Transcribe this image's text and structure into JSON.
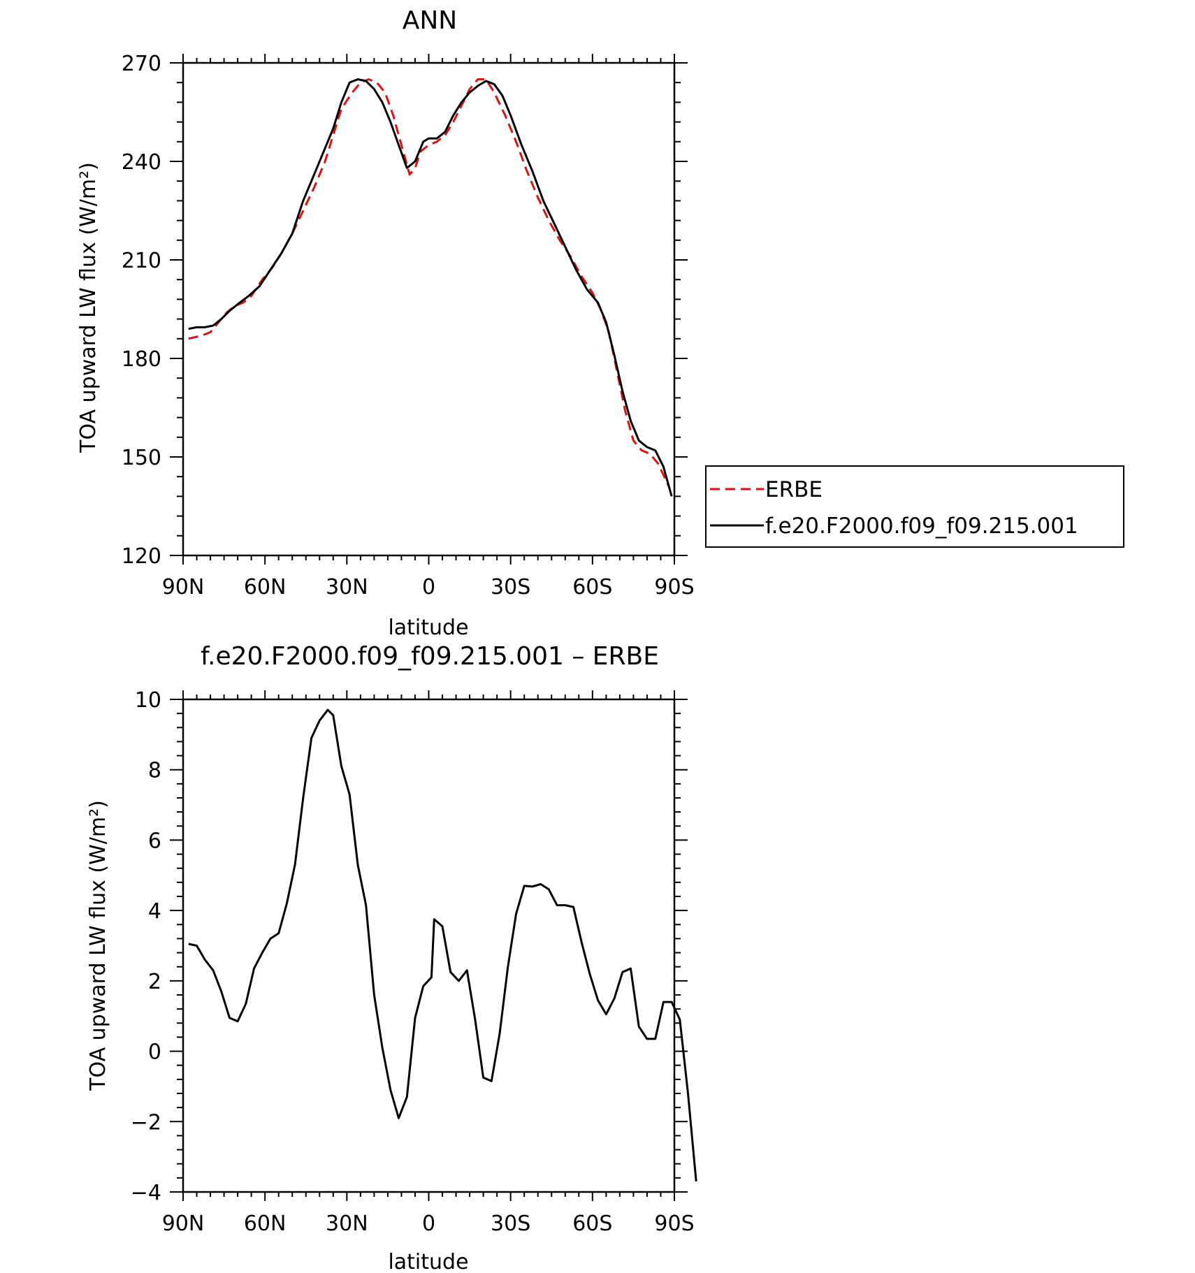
{
  "chart_data": [
    {
      "type": "line",
      "title": "ANN",
      "xlabel": "latitude",
      "ylabel": "TOA upward LW flux (W/m²)",
      "ylim": [
        120,
        270
      ],
      "xlim": [
        90,
        -90
      ],
      "x_ticks": [
        90,
        60,
        30,
        0,
        -30,
        -60,
        -90
      ],
      "x_tick_labels": [
        "90N",
        "60N",
        "30N",
        "0",
        "30S",
        "60S",
        "90S"
      ],
      "y_ticks": [
        120,
        150,
        180,
        210,
        240,
        270
      ],
      "y_tick_labels": [
        "120",
        "150",
        "180",
        "210",
        "240",
        "270"
      ],
      "grid": false,
      "legend_position": "right-middle",
      "series": [
        {
          "name": "ERBE",
          "color": "#e01010",
          "dash": "dashed",
          "points": [
            [
              88,
              186
            ],
            [
              83,
              187
            ],
            [
              80,
              188
            ],
            [
              77,
              191
            ],
            [
              74,
              194
            ],
            [
              71,
              196
            ],
            [
              68,
              197
            ],
            [
              65,
              199
            ],
            [
              61,
              204
            ],
            [
              57,
              208
            ],
            [
              54,
              212
            ],
            [
              50,
              218
            ],
            [
              46,
              225
            ],
            [
              42,
              232
            ],
            [
              38,
              240
            ],
            [
              35,
              248
            ],
            [
              32,
              256
            ],
            [
              28,
              261
            ],
            [
              25,
              264
            ],
            [
              22,
              265
            ],
            [
              19,
              264
            ],
            [
              16,
              261
            ],
            [
              13,
              254
            ],
            [
              10,
              245
            ],
            [
              7,
              236
            ],
            [
              5,
              238
            ],
            [
              3,
              243
            ],
            [
              0,
              245
            ],
            [
              -3,
              246
            ],
            [
              -6,
              248
            ],
            [
              -9,
              252
            ],
            [
              -12,
              257
            ],
            [
              -15,
              262
            ],
            [
              -18,
              265
            ],
            [
              -21,
              265
            ],
            [
              -24,
              261
            ],
            [
              -28,
              254
            ],
            [
              -32,
              246
            ],
            [
              -36,
              237
            ],
            [
              -40,
              229
            ],
            [
              -44,
              222
            ],
            [
              -48,
              216
            ],
            [
              -52,
              211
            ],
            [
              -56,
              205
            ],
            [
              -60,
              200
            ],
            [
              -63,
              195
            ],
            [
              -66,
              188
            ],
            [
              -69,
              176
            ],
            [
              -72,
              164
            ],
            [
              -75,
              155
            ],
            [
              -78,
              152
            ],
            [
              -81,
              151
            ],
            [
              -84,
              148
            ],
            [
              -88,
              141
            ]
          ]
        },
        {
          "name": "f.e20.F2000.f09_f09.215.001",
          "color": "#000000",
          "dash": "solid",
          "points": [
            [
              88,
              189
            ],
            [
              85,
              189.5
            ],
            [
              82,
              189.5
            ],
            [
              79,
              190
            ],
            [
              76,
              192
            ],
            [
              73,
              194.5
            ],
            [
              70,
              196.5
            ],
            [
              66,
              199
            ],
            [
              62,
              202
            ],
            [
              58,
              207
            ],
            [
              54,
              212
            ],
            [
              50,
              218
            ],
            [
              46,
              228
            ],
            [
              42,
              236
            ],
            [
              38,
              244
            ],
            [
              35,
              250
            ],
            [
              32,
              258
            ],
            [
              29,
              264
            ],
            [
              26,
              265
            ],
            [
              23,
              264.5
            ],
            [
              20,
              262
            ],
            [
              17,
              258
            ],
            [
              14,
              252
            ],
            [
              11,
              245
            ],
            [
              8,
              238
            ],
            [
              5,
              240
            ],
            [
              2,
              246
            ],
            [
              0,
              247
            ],
            [
              -3,
              247
            ],
            [
              -6,
              249
            ],
            [
              -9,
              254
            ],
            [
              -12,
              258
            ],
            [
              -15,
              261
            ],
            [
              -18,
              263
            ],
            [
              -21,
              264.5
            ],
            [
              -24,
              263.5
            ],
            [
              -27,
              260
            ],
            [
              -30,
              254
            ],
            [
              -34,
              245
            ],
            [
              -38,
              237
            ],
            [
              -42,
              228
            ],
            [
              -46,
              221
            ],
            [
              -50,
              214
            ],
            [
              -54,
              207
            ],
            [
              -58,
              201
            ],
            [
              -62,
              197
            ],
            [
              -65,
              191
            ],
            [
              -68,
              181
            ],
            [
              -71,
              170
            ],
            [
              -74,
              161
            ],
            [
              -77,
              155
            ],
            [
              -80,
              153
            ],
            [
              -83,
              152
            ],
            [
              -86,
              147
            ],
            [
              -89,
              138
            ]
          ]
        }
      ]
    },
    {
      "type": "line",
      "title": "f.e20.F2000.f09_f09.215.001 – ERBE",
      "xlabel": "latitude",
      "ylabel": "TOA upward LW flux (W/m²)",
      "ylim": [
        -4,
        10
      ],
      "xlim": [
        90,
        -90
      ],
      "x_ticks": [
        90,
        60,
        30,
        0,
        -30,
        -60,
        -90
      ],
      "x_tick_labels": [
        "90N",
        "60N",
        "30N",
        "0",
        "30S",
        "60S",
        "90S"
      ],
      "y_ticks": [
        -4,
        -2,
        0,
        2,
        4,
        6,
        8,
        10
      ],
      "y_tick_labels": [
        "−4",
        "−2",
        "0",
        "2",
        "4",
        "6",
        "8",
        "10"
      ],
      "grid": false,
      "series": [
        {
          "color": "#000000",
          "dash": "solid",
          "points": [
            [
              88,
              3.05
            ],
            [
              85,
              3.0
            ],
            [
              82,
              2.6
            ],
            [
              79,
              2.3
            ],
            [
              76,
              1.7
            ],
            [
              73,
              0.95
            ],
            [
              70,
              0.85
            ],
            [
              67,
              1.35
            ],
            [
              64,
              2.35
            ],
            [
              61,
              2.8
            ],
            [
              58,
              3.2
            ],
            [
              55,
              3.35
            ],
            [
              52,
              4.2
            ],
            [
              49,
              5.3
            ],
            [
              46,
              7.2
            ],
            [
              43,
              8.9
            ],
            [
              40,
              9.4
            ],
            [
              37,
              9.7
            ],
            [
              35,
              9.55
            ],
            [
              32,
              8.1
            ],
            [
              29,
              7.3
            ],
            [
              26,
              5.3
            ],
            [
              23,
              4.15
            ],
            [
              20,
              1.6
            ],
            [
              17,
              0.1
            ],
            [
              14,
              -1.1
            ],
            [
              11,
              -1.9
            ],
            [
              8,
              -1.3
            ],
            [
              5,
              0.95
            ],
            [
              2,
              1.85
            ],
            [
              -1,
              2.1
            ],
            [
              -2,
              3.75
            ],
            [
              -5,
              3.55
            ],
            [
              -8,
              2.25
            ],
            [
              -11,
              2.0
            ],
            [
              -14,
              2.3
            ],
            [
              -17,
              0.9
            ],
            [
              -20,
              -0.75
            ],
            [
              -23,
              -0.85
            ],
            [
              -26,
              0.5
            ],
            [
              -29,
              2.4
            ],
            [
              -32,
              3.9
            ],
            [
              -35,
              4.7
            ],
            [
              -38,
              4.68
            ],
            [
              -41,
              4.75
            ],
            [
              -44,
              4.6
            ],
            [
              -47,
              4.15
            ],
            [
              -50,
              4.15
            ],
            [
              -53,
              4.1
            ],
            [
              -56,
              3.1
            ],
            [
              -59,
              2.2
            ],
            [
              -62,
              1.45
            ],
            [
              -65,
              1.05
            ],
            [
              -68,
              1.5
            ],
            [
              -71,
              2.25
            ],
            [
              -74,
              2.35
            ],
            [
              -77,
              0.7
            ],
            [
              -80,
              0.35
            ],
            [
              -83,
              0.35
            ],
            [
              -86,
              1.4
            ],
            [
              -89,
              1.4
            ],
            [
              -92,
              0.9
            ],
            [
              -95,
              -1.2
            ],
            [
              -98,
              -3.7
            ]
          ]
        }
      ]
    }
  ]
}
